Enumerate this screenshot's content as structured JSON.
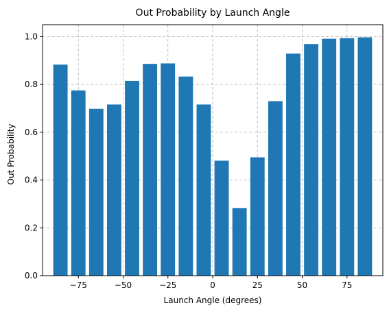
{
  "chart_data": {
    "type": "bar",
    "title": "Out Probability by Launch Angle",
    "xlabel": "Launch Angle (degrees)",
    "ylabel": "Out Probability",
    "x": [
      -85,
      -75,
      -65,
      -55,
      -45,
      -35,
      -25,
      -15,
      -5,
      5,
      15,
      25,
      35,
      45,
      55,
      65,
      75,
      85
    ],
    "values": [
      0.883,
      0.775,
      0.698,
      0.716,
      0.815,
      0.886,
      0.888,
      0.833,
      0.716,
      0.481,
      0.283,
      0.495,
      0.73,
      0.929,
      0.969,
      0.991,
      0.994,
      0.997
    ],
    "bar_width": 8,
    "xlim": [
      -95,
      95
    ],
    "ylim": [
      0,
      1.05
    ],
    "xticks": [
      -75,
      -50,
      -25,
      0,
      25,
      50,
      75
    ],
    "xtick_labels": [
      "−75",
      "−50",
      "−25",
      "0",
      "25",
      "50",
      "75"
    ],
    "yticks": [
      0.0,
      0.2,
      0.4,
      0.6,
      0.8,
      1.0
    ],
    "ytick_labels": [
      "0.0",
      "0.2",
      "0.4",
      "0.6",
      "0.8",
      "1.0"
    ],
    "grid": true,
    "bar_color": "#1f77b4",
    "grid_color": "#b0b0b0"
  }
}
